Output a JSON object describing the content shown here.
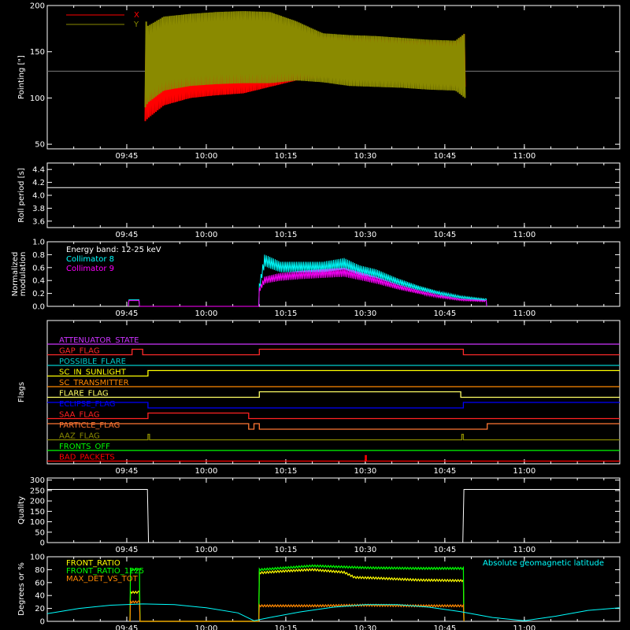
{
  "chart_data": {
    "type": "line",
    "time_ticks": [
      "09:45",
      "10:00",
      "10:15",
      "10:30",
      "10:45",
      "11:00"
    ],
    "time_ticks_min": [
      585,
      600,
      615,
      630,
      645,
      660
    ],
    "time_range_min": [
      570,
      678
    ],
    "panels": [
      {
        "id": "pointing",
        "ylabel": "Pointing [\"]",
        "ylim": [
          45,
          200
        ],
        "yticks": [
          50,
          100,
          150,
          200
        ],
        "reference_line": 129,
        "legend": [
          {
            "name": "X",
            "color": "#ff0000"
          },
          {
            "name": "Y",
            "color": "#8a8a00"
          }
        ],
        "series": [
          {
            "name": "X",
            "color": "#ff0000",
            "t": [
              588.5,
              589,
              592,
              597,
              602,
              607,
              612,
              617,
              622,
              627,
              632,
              637,
              642,
              647,
              648.8
            ],
            "low": [
              75,
              78,
              92,
              100,
              103,
              105,
              112,
              119,
              122,
              121,
              119,
              118,
              116,
              113,
              112
            ],
            "high": [
              170,
              166,
              162,
              160,
              160,
              161,
              162,
              165,
              166,
              165,
              163,
              162,
              161,
              160,
              170
            ]
          },
          {
            "name": "Y",
            "color": "#8a8a00",
            "t": [
              588.5,
              589,
              592,
              597,
              602,
              607,
              612,
              617,
              622,
              627,
              632,
              637,
              642,
              647,
              648.8
            ],
            "low": [
              90,
              95,
              108,
              113,
              115,
              116,
              116,
              119,
              117,
              113,
              112,
              111,
              109,
              108,
              100
            ],
            "high": [
              185,
              178,
              188,
              191,
              193,
              194,
              193,
              183,
              170,
              168,
              167,
              165,
              163,
              162,
              170
            ]
          }
        ]
      },
      {
        "id": "roll",
        "ylabel": "Roll period [s]",
        "ylim": [
          3.5,
          4.5
        ],
        "yticks": [
          3.6,
          3.8,
          4.0,
          4.2,
          4.4
        ],
        "series": [
          {
            "name": "roll period",
            "color": "#ffffff",
            "t": [
              570,
              590,
              610,
              630,
              650,
              678
            ],
            "y": [
              4.12,
              4.12,
              4.12,
              4.12,
              4.12,
              4.12
            ]
          }
        ]
      },
      {
        "id": "modulation",
        "ylabel": "Normalized modulation",
        "ylim": [
          0,
          1.0
        ],
        "yticks": [
          0.0,
          0.2,
          0.4,
          0.6,
          0.8,
          1.0
        ],
        "annotation": "Energy band: 12-25 keV",
        "legend": [
          {
            "name": "Collimator 8",
            "color": "#00ffff"
          },
          {
            "name": "Collimator 9",
            "color": "#ff00ff"
          }
        ],
        "series": [
          {
            "name": "Collimator 8",
            "color": "#00ffff",
            "t": [
              585.3,
              585.4,
              587.3,
              587.4,
              609.9,
              610,
              611,
              614,
              618,
              622,
              626,
              629,
              632,
              636,
              640,
              644,
              648,
              652.8,
              652.9
            ],
            "y": [
              0,
              0.1,
              0.1,
              0,
              0,
              0.3,
              0.7,
              0.6,
              0.6,
              0.6,
              0.65,
              0.55,
              0.5,
              0.38,
              0.28,
              0.2,
              0.14,
              0.1,
              0
            ]
          },
          {
            "name": "Collimator 9",
            "color": "#ff00ff",
            "t": [
              585.3,
              585.4,
              587.3,
              587.4,
              609.9,
              610,
              611,
              614,
              618,
              622,
              626,
              629,
              632,
              636,
              640,
              644,
              648,
              652.8,
              652.9
            ],
            "y": [
              0,
              0.09,
              0.09,
              0,
              0,
              0.25,
              0.4,
              0.45,
              0.48,
              0.5,
              0.52,
              0.46,
              0.4,
              0.3,
              0.22,
              0.15,
              0.1,
              0.08,
              0
            ]
          }
        ]
      },
      {
        "id": "flags",
        "ylabel": "Flags",
        "flags": [
          {
            "label": "ATTENUATOR_STATE",
            "color": "#cc33ff",
            "t": [
              570,
              678
            ],
            "v": [
              0,
              0
            ]
          },
          {
            "label": "GAP_FLAG",
            "color": "#ff2a2a",
            "t": [
              570,
              586,
              586,
              588,
              588,
              610,
              610,
              648.5,
              648.5,
              678
            ],
            "v": [
              0,
              0,
              1,
              1,
              0,
              0,
              1,
              1,
              0,
              0
            ]
          },
          {
            "label": "POSSIBLE_FLARE",
            "color": "#00cccc",
            "t": [
              570,
              678
            ],
            "v": [
              0,
              0
            ]
          },
          {
            "label": "SC_IN_SUNLIGHT",
            "color": "#ffff00",
            "t": [
              570,
              589,
              589,
              678
            ],
            "v": [
              0,
              0,
              1,
              1
            ]
          },
          {
            "label": "SC_TRANSMITTER",
            "color": "#ff8800",
            "t": [
              570,
              678
            ],
            "v": [
              0,
              0
            ]
          },
          {
            "label": "FLARE_FLAG",
            "color": "#ffff66",
            "t": [
              570,
              610,
              610,
              648,
              648,
              678
            ],
            "v": [
              0,
              0,
              1,
              1,
              0,
              0
            ]
          },
          {
            "label": "ECLIPSE_FLAG",
            "color": "#0000ff",
            "t": [
              570,
              589,
              589,
              648.5,
              648.5,
              678
            ],
            "v": [
              1,
              1,
              0,
              0,
              1,
              1
            ]
          },
          {
            "label": "SAA_FLAG",
            "color": "#ff2222",
            "t": [
              570,
              589,
              589,
              608,
              608,
              678
            ],
            "v": [
              0,
              0,
              1,
              1,
              0,
              0
            ]
          },
          {
            "label": "PARTICLE_FLAG",
            "color": "#ff7733",
            "t": [
              570,
              608,
              608,
              609,
              609,
              610,
              610,
              653,
              653,
              678
            ],
            "v": [
              1,
              1,
              0,
              0,
              1,
              1,
              0,
              0,
              1,
              1
            ]
          },
          {
            "label": "AAZ_FLAG",
            "color": "#8a8a00",
            "t": [
              570,
              589,
              589,
              589.3,
              589.3,
              648.2,
              648.2,
              648.5,
              648.5,
              678
            ],
            "v": [
              0,
              0,
              1,
              1,
              0,
              0,
              1,
              1,
              0,
              0
            ]
          },
          {
            "label": "FRONTS_OFF",
            "color": "#00ff00",
            "t": [
              570,
              678
            ],
            "v": [
              0,
              0
            ]
          },
          {
            "label": "BAD_PACKETS",
            "color": "#ff0000",
            "t": [
              570,
              630,
              630,
              630.2,
              630.2,
              678
            ],
            "v": [
              0,
              0,
              1,
              1,
              0,
              0
            ]
          }
        ]
      },
      {
        "id": "quality",
        "ylabel": "Quality",
        "ylim": [
          0,
          310
        ],
        "yticks": [
          0,
          50,
          100,
          150,
          200,
          250,
          300
        ],
        "series": [
          {
            "name": "Quality",
            "color": "#ffffff",
            "t": [
              570,
              588.9,
              589.1,
              648.4,
              648.6,
              678
            ],
            "y": [
              255,
              255,
              0,
              0,
              255,
              255
            ]
          }
        ]
      },
      {
        "id": "geo",
        "ylabel": "Degrees or %",
        "ylim": [
          0,
          100
        ],
        "yticks": [
          0,
          20,
          40,
          60,
          80,
          100
        ],
        "legend": [
          {
            "name": "FRONT_RATIO",
            "color": "#ffff00"
          },
          {
            "name": "FRONT_RATIO_1225",
            "color": "#00ff00"
          },
          {
            "name": "MAX_DET_VS_TOT",
            "color": "#ff8800"
          }
        ],
        "right_legend": {
          "name": "Absolute geomagnetic latitude",
          "color": "#00ffff"
        },
        "series": [
          {
            "name": "FRONT_RATIO",
            "color": "#ffff00",
            "t": [
              585.6,
              585.7,
              587.4,
              587.5,
              609.9,
              610,
              615,
              620,
              626,
              628,
              632,
              640,
              648.5,
              648.6
            ],
            "y": [
              0,
              45,
              45,
              0,
              0,
              75,
              78,
              80,
              76,
              68,
              67,
              64,
              63,
              0
            ]
          },
          {
            "name": "FRONT_RATIO_1225",
            "color": "#00ff00",
            "t": [
              585.6,
              585.7,
              587.4,
              587.5,
              609.9,
              610,
              620,
              630,
              640,
              648.5,
              648.6
            ],
            "y": [
              0,
              80,
              80,
              0,
              0,
              80,
              86,
              83,
              82,
              82,
              0
            ]
          },
          {
            "name": "MAX_DET_VS_TOT",
            "color": "#ff8800",
            "t": [
              585.6,
              585.7,
              587.4,
              587.5,
              609.9,
              610,
              620,
              630,
              640,
              648.5,
              648.6
            ],
            "y": [
              0,
              30,
              30,
              0,
              0,
              24,
              24,
              25,
              24,
              24,
              0
            ]
          },
          {
            "name": "Absolute geomagnetic latitude",
            "color": "#00ffff",
            "t": [
              570,
              576,
              582,
              588,
              594,
              600,
              606,
              609,
              612,
              618,
              624,
              630,
              636,
              642,
              648,
              654,
              660,
              666,
              672,
              678
            ],
            "y": [
              12,
              20,
              25,
              27,
              26,
              21,
              13,
              1,
              6,
              15,
              22,
              26,
              26,
              22,
              15,
              6,
              1,
              8,
              17,
              21
            ]
          }
        ]
      }
    ]
  }
}
